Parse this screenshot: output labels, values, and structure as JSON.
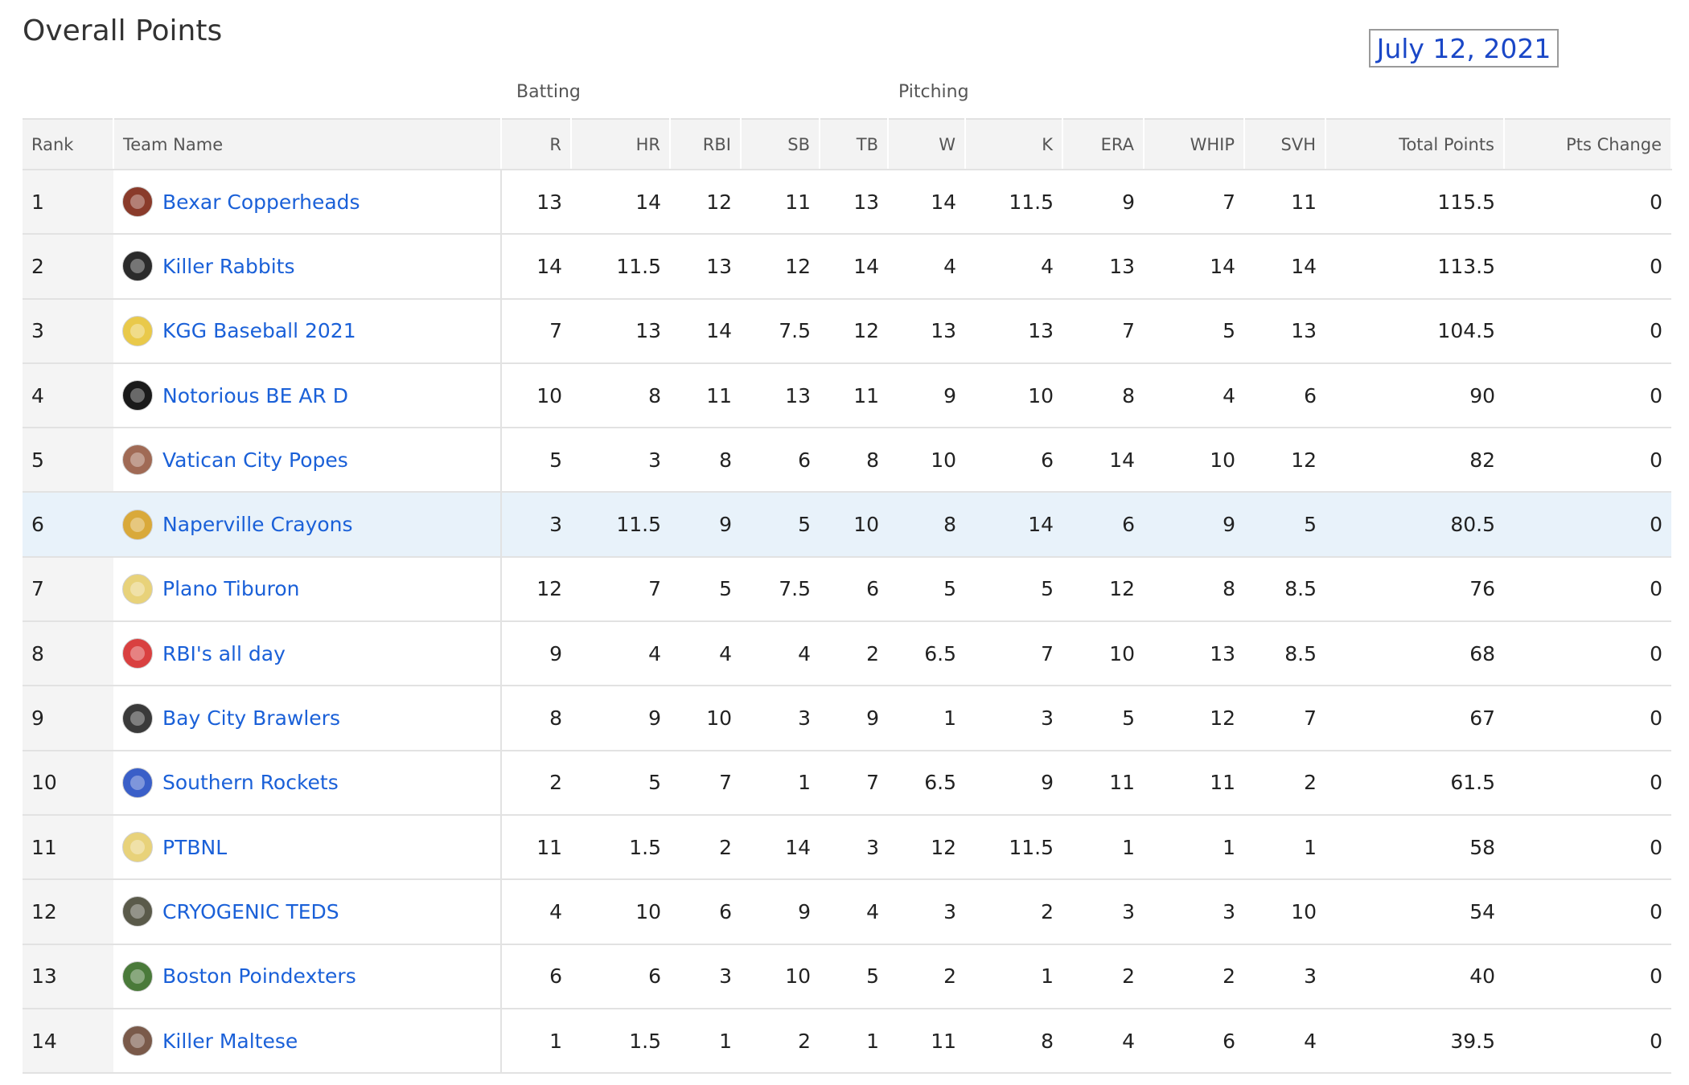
{
  "page": {
    "title": "Overall Points",
    "date": "July 12, 2021"
  },
  "groups": {
    "batting": "Batting",
    "pitching": "Pitching"
  },
  "columns": [
    "Rank",
    "Team Name",
    "R",
    "HR",
    "RBI",
    "SB",
    "TB",
    "W",
    "K",
    "ERA",
    "WHIP",
    "SVH",
    "Total Points",
    "Pts Change"
  ],
  "teams": [
    {
      "rank": "1",
      "name": "Bexar Copperheads",
      "logo_icon": "copperhead-snake-logo-icon",
      "logo_color": "#8a3b2b",
      "stats": [
        "13",
        "14",
        "12",
        "11",
        "13",
        "14",
        "11.5",
        "9",
        "7",
        "11"
      ],
      "total": "115.5",
      "change": "0",
      "highlight": false
    },
    {
      "rank": "2",
      "name": "Killer Rabbits",
      "logo_icon": "killer-rabbit-logo-icon",
      "logo_color": "#2b2b2b",
      "stats": [
        "14",
        "11.5",
        "13",
        "12",
        "14",
        "4",
        "4",
        "13",
        "14",
        "14"
      ],
      "total": "113.5",
      "change": "0",
      "highlight": false
    },
    {
      "rank": "3",
      "name": "KGG Baseball 2021",
      "logo_icon": "green-cap-logo-icon",
      "logo_color": "#e9c94a",
      "stats": [
        "7",
        "13",
        "14",
        "7.5",
        "12",
        "13",
        "13",
        "7",
        "5",
        "13"
      ],
      "total": "104.5",
      "change": "0",
      "highlight": false
    },
    {
      "rank": "4",
      "name": "Notorious BE AR D",
      "logo_icon": "bear-seal-logo-icon",
      "logo_color": "#1a1a1a",
      "stats": [
        "10",
        "8",
        "11",
        "13",
        "11",
        "9",
        "10",
        "8",
        "4",
        "6"
      ],
      "total": "90",
      "change": "0",
      "highlight": false
    },
    {
      "rank": "5",
      "name": "Vatican City Popes",
      "logo_icon": "pope-photo-logo-icon",
      "logo_color": "#a06a55",
      "stats": [
        "5",
        "3",
        "8",
        "6",
        "8",
        "10",
        "6",
        "14",
        "10",
        "12"
      ],
      "total": "82",
      "change": "0",
      "highlight": false
    },
    {
      "rank": "6",
      "name": "Naperville Crayons",
      "logo_icon": "crayon-box-logo-icon",
      "logo_color": "#d9a93a",
      "stats": [
        "3",
        "11.5",
        "9",
        "5",
        "10",
        "8",
        "14",
        "6",
        "9",
        "5"
      ],
      "total": "80.5",
      "change": "0",
      "highlight": true
    },
    {
      "rank": "7",
      "name": "Plano Tiburon",
      "logo_icon": "yellow-cap-logo-icon",
      "logo_color": "#e8d27a",
      "stats": [
        "12",
        "7",
        "5",
        "7.5",
        "6",
        "5",
        "5",
        "12",
        "8",
        "8.5"
      ],
      "total": "76",
      "change": "0",
      "highlight": false
    },
    {
      "rank": "8",
      "name": "RBI's all day",
      "logo_icon": "red-blue-cap-logo-icon",
      "logo_color": "#d94040",
      "stats": [
        "9",
        "4",
        "4",
        "4",
        "2",
        "6.5",
        "7",
        "10",
        "13",
        "8.5"
      ],
      "total": "68",
      "change": "0",
      "highlight": false
    },
    {
      "rank": "9",
      "name": "Bay City Brawlers",
      "logo_icon": "bulldog-logo-icon",
      "logo_color": "#3a3a3a",
      "stats": [
        "8",
        "9",
        "10",
        "3",
        "9",
        "1",
        "3",
        "5",
        "12",
        "7"
      ],
      "total": "67",
      "change": "0",
      "highlight": false
    },
    {
      "rank": "10",
      "name": "Southern Rockets",
      "logo_icon": "rocket-logo-icon",
      "logo_color": "#3a5fc8",
      "stats": [
        "2",
        "5",
        "7",
        "1",
        "7",
        "6.5",
        "9",
        "11",
        "11",
        "2"
      ],
      "total": "61.5",
      "change": "0",
      "highlight": false
    },
    {
      "rank": "11",
      "name": "PTBNL",
      "logo_icon": "yellow-cap-logo-icon",
      "logo_color": "#e8d27a",
      "stats": [
        "11",
        "1.5",
        "2",
        "14",
        "3",
        "12",
        "11.5",
        "1",
        "1",
        "1"
      ],
      "total": "58",
      "change": "0",
      "highlight": false
    },
    {
      "rank": "12",
      "name": "CRYOGENIC TEDS",
      "logo_icon": "frozen-head-logo-icon",
      "logo_color": "#5a5a4a",
      "stats": [
        "4",
        "10",
        "6",
        "9",
        "4",
        "3",
        "2",
        "3",
        "3",
        "10"
      ],
      "total": "54",
      "change": "0",
      "highlight": false
    },
    {
      "rank": "13",
      "name": "Boston Poindexters",
      "logo_icon": "green-monster-logo-icon",
      "logo_color": "#4a7a3a",
      "stats": [
        "6",
        "6",
        "3",
        "10",
        "5",
        "2",
        "1",
        "2",
        "2",
        "3"
      ],
      "total": "40",
      "change": "0",
      "highlight": false
    },
    {
      "rank": "14",
      "name": "Killer Maltese",
      "logo_icon": "maltese-dog-logo-icon",
      "logo_color": "#7a5a4a",
      "stats": [
        "1",
        "1.5",
        "1",
        "2",
        "1",
        "11",
        "8",
        "4",
        "6",
        "4"
      ],
      "total": "39.5",
      "change": "0",
      "highlight": false
    }
  ]
}
